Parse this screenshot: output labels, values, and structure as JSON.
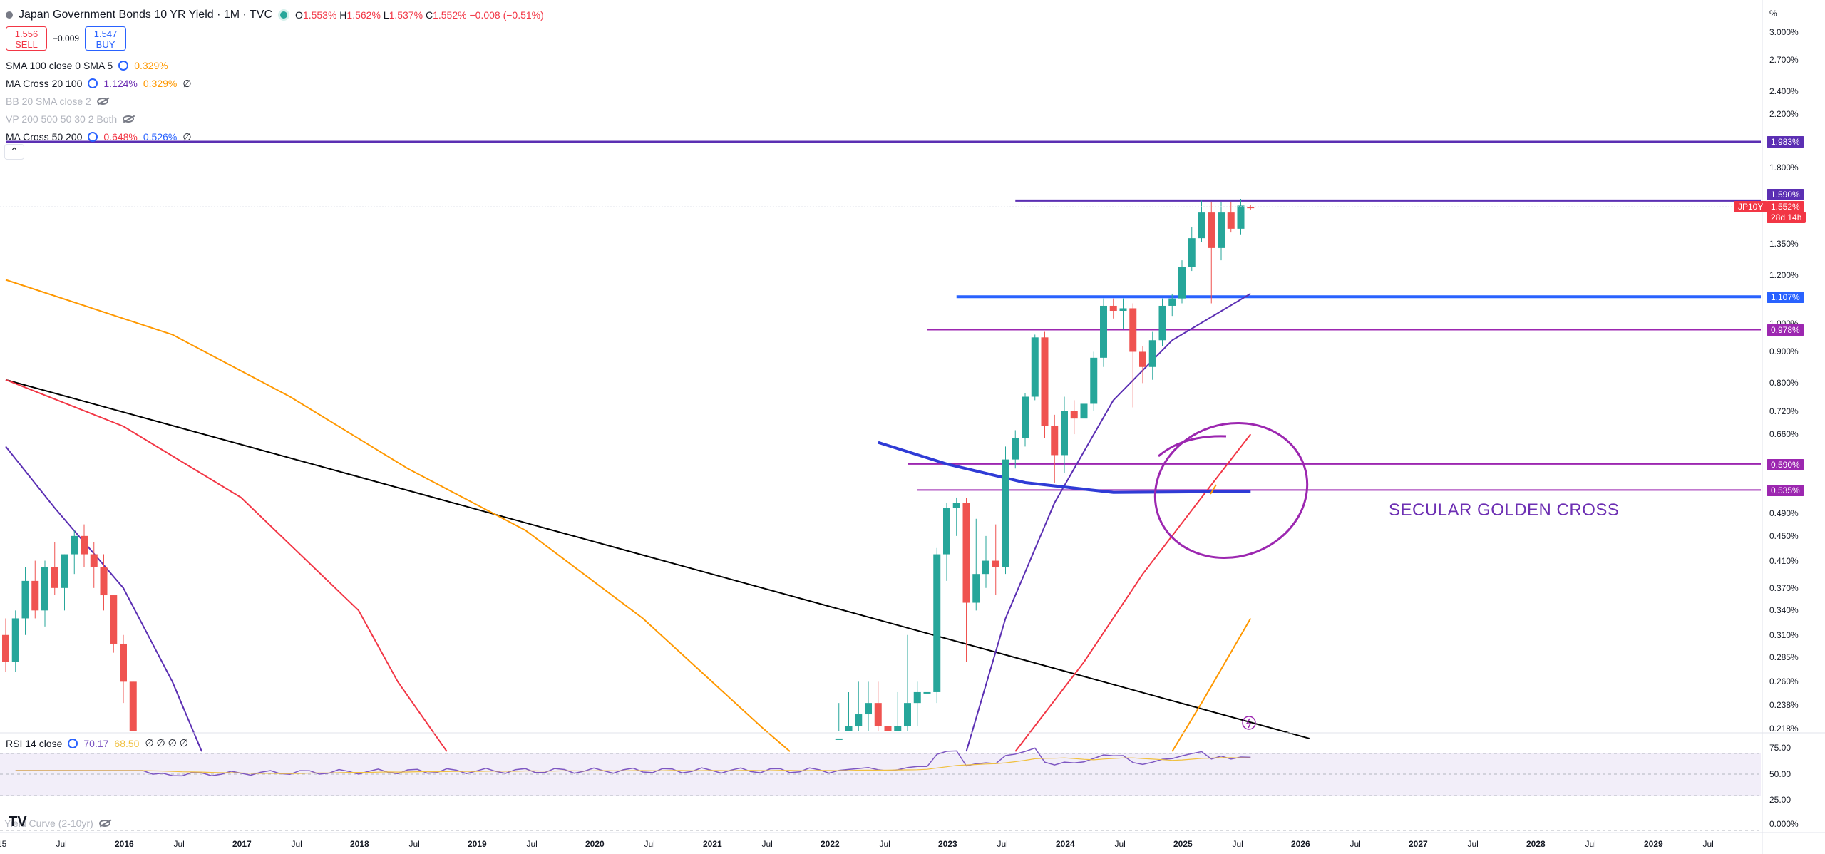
{
  "header": {
    "title": "Japan Government Bonds 10 YR Yield · 1M · TVC",
    "ohlc": [
      {
        "k": "O",
        "v": "1.553%"
      },
      {
        "k": "H",
        "v": "1.562%"
      },
      {
        "k": "L",
        "v": "1.537%"
      },
      {
        "k": "C",
        "v": "1.552%"
      },
      {
        "k": "",
        "v": "−0.008 (−0.51%)"
      }
    ],
    "sell_price": "1.556",
    "sell_label": "SELL",
    "spread": "−0.009",
    "buy_price": "1.547",
    "buy_label": "BUY"
  },
  "indicators": [
    {
      "name": "SMA 100 close 0 SMA 5",
      "values": [
        "0.329%"
      ],
      "value_colors": [
        "#ff9800"
      ],
      "hidden": false,
      "extra": ""
    },
    {
      "name": "MA Cross 20 100",
      "values": [
        "1.124%",
        "0.329%"
      ],
      "value_colors": [
        "#6d2fb3",
        "#ff9800"
      ],
      "hidden": false,
      "extra": "∅"
    },
    {
      "name": "BB 20 SMA close 2",
      "values": [],
      "value_colors": [],
      "hidden": true,
      "extra": ""
    },
    {
      "name": "VP 200 500 50 30 2 Both",
      "values": [],
      "value_colors": [],
      "hidden": true,
      "extra": ""
    },
    {
      "name": "MA Cross 50 200",
      "values": [
        "0.648%",
        "0.526%"
      ],
      "value_colors": [
        "#f23645",
        "#2962ff"
      ],
      "hidden": false,
      "extra": "∅"
    }
  ],
  "collapse_icon": "chevron-up",
  "price_axis": {
    "unit_label": "%",
    "ticks": [
      "3.000%",
      "2.700%",
      "2.400%",
      "2.200%",
      "1.800%",
      "1.350%",
      "1.200%",
      "1.000%",
      "0.900%",
      "0.800%",
      "0.720%",
      "0.660%",
      "0.490%",
      "0.450%",
      "0.410%",
      "0.370%",
      "0.340%",
      "0.310%",
      "0.285%",
      "0.260%",
      "0.238%",
      "0.218%"
    ]
  },
  "price_tags": [
    {
      "label": "1.983%",
      "color": "#5b2fb3"
    },
    {
      "label": "1.590%",
      "color": "#5b2fb3"
    },
    {
      "label": "1.552%",
      "color": "#f23645"
    },
    {
      "label": "28d 14h",
      "color": "#f23645"
    },
    {
      "label": "1.107%",
      "color": "#2962ff"
    },
    {
      "label": "0.978%",
      "color": "#9c27b0"
    },
    {
      "label": "0.590%",
      "color": "#9c27b0"
    },
    {
      "label": "0.535%",
      "color": "#9c27b0"
    }
  ],
  "symbol_tag": "JP10Y",
  "annotation": "SECULAR GOLDEN CROSS",
  "rsi": {
    "name": "RSI 14 close",
    "values": [
      "70.17",
      "68.50"
    ],
    "value_colors": [
      "#7e57c2",
      "#f0c040"
    ],
    "extra": "∅ ∅ ∅ ∅",
    "ticks": [
      "75.00",
      "50.00",
      "25.00"
    ]
  },
  "yield_curve": {
    "name": "Yield Curve (2-10yr)",
    "tick": "0.000%"
  },
  "time_axis": [
    "15",
    "Jul",
    "2016",
    "Jul",
    "2017",
    "Jul",
    "2018",
    "Jul",
    "2019",
    "Jul",
    "2020",
    "Jul",
    "2021",
    "Jul",
    "2022",
    "Jul",
    "2023",
    "Jul",
    "2024",
    "Jul",
    "2025",
    "Jul",
    "2026",
    "Jul",
    "2027",
    "Jul",
    "2028",
    "Jul",
    "2029",
    "Jul"
  ],
  "chart_data": {
    "type": "candlestick",
    "title": "Japan Government Bonds 10 YR Yield",
    "y_scale": "log",
    "y_range": [
      0.2,
      3.1
    ],
    "x_range": [
      "2015-01",
      "2029-12"
    ],
    "candles": [
      {
        "t": "2015-01",
        "o": 0.31,
        "h": 0.33,
        "l": 0.27,
        "c": 0.28
      },
      {
        "t": "2015-02",
        "o": 0.28,
        "h": 0.34,
        "l": 0.27,
        "c": 0.33
      },
      {
        "t": "2015-03",
        "o": 0.33,
        "h": 0.4,
        "l": 0.31,
        "c": 0.38
      },
      {
        "t": "2015-04",
        "o": 0.38,
        "h": 0.41,
        "l": 0.33,
        "c": 0.34
      },
      {
        "t": "2015-05",
        "o": 0.34,
        "h": 0.41,
        "l": 0.32,
        "c": 0.4
      },
      {
        "t": "2015-06",
        "o": 0.4,
        "h": 0.44,
        "l": 0.36,
        "c": 0.37
      },
      {
        "t": "2015-07",
        "o": 0.37,
        "h": 0.42,
        "l": 0.34,
        "c": 0.42
      },
      {
        "t": "2015-08",
        "o": 0.42,
        "h": 0.46,
        "l": 0.39,
        "c": 0.45
      },
      {
        "t": "2015-09",
        "o": 0.45,
        "h": 0.47,
        "l": 0.4,
        "c": 0.42
      },
      {
        "t": "2015-10",
        "o": 0.42,
        "h": 0.44,
        "l": 0.37,
        "c": 0.4
      },
      {
        "t": "2015-11",
        "o": 0.4,
        "h": 0.42,
        "l": 0.34,
        "c": 0.36
      },
      {
        "t": "2015-12",
        "o": 0.36,
        "h": 0.36,
        "l": 0.29,
        "c": 0.3
      },
      {
        "t": "2016-01",
        "o": 0.3,
        "h": 0.31,
        "l": 0.24,
        "c": 0.26
      },
      {
        "t": "2016-02",
        "o": 0.26,
        "h": 0.26,
        "l": 0.2,
        "c": 0.2
      },
      {
        "t": "2022-02",
        "o": 0.2,
        "h": 0.24,
        "l": 0.19,
        "c": 0.21
      },
      {
        "t": "2022-03",
        "o": 0.21,
        "h": 0.25,
        "l": 0.19,
        "c": 0.22
      },
      {
        "t": "2022-04",
        "o": 0.22,
        "h": 0.26,
        "l": 0.2,
        "c": 0.23
      },
      {
        "t": "2022-05",
        "o": 0.23,
        "h": 0.26,
        "l": 0.21,
        "c": 0.24
      },
      {
        "t": "2022-06",
        "o": 0.24,
        "h": 0.26,
        "l": 0.21,
        "c": 0.22
      },
      {
        "t": "2022-07",
        "o": 0.22,
        "h": 0.25,
        "l": 0.2,
        "c": 0.21
      },
      {
        "t": "2022-08",
        "o": 0.21,
        "h": 0.25,
        "l": 0.2,
        "c": 0.22
      },
      {
        "t": "2022-09",
        "o": 0.22,
        "h": 0.31,
        "l": 0.2,
        "c": 0.24
      },
      {
        "t": "2022-10",
        "o": 0.24,
        "h": 0.26,
        "l": 0.22,
        "c": 0.25
      },
      {
        "t": "2022-11",
        "o": 0.25,
        "h": 0.27,
        "l": 0.23,
        "c": 0.25
      },
      {
        "t": "2022-12",
        "o": 0.25,
        "h": 0.43,
        "l": 0.24,
        "c": 0.42
      },
      {
        "t": "2023-01",
        "o": 0.42,
        "h": 0.51,
        "l": 0.38,
        "c": 0.5
      },
      {
        "t": "2023-02",
        "o": 0.5,
        "h": 0.52,
        "l": 0.45,
        "c": 0.51
      },
      {
        "t": "2023-03",
        "o": 0.51,
        "h": 0.52,
        "l": 0.28,
        "c": 0.35
      },
      {
        "t": "2023-04",
        "o": 0.35,
        "h": 0.48,
        "l": 0.34,
        "c": 0.39
      },
      {
        "t": "2023-05",
        "o": 0.39,
        "h": 0.45,
        "l": 0.37,
        "c": 0.41
      },
      {
        "t": "2023-06",
        "o": 0.41,
        "h": 0.47,
        "l": 0.36,
        "c": 0.4
      },
      {
        "t": "2023-07",
        "o": 0.4,
        "h": 0.63,
        "l": 0.39,
        "c": 0.6
      },
      {
        "t": "2023-08",
        "o": 0.6,
        "h": 0.67,
        "l": 0.58,
        "c": 0.65
      },
      {
        "t": "2023-09",
        "o": 0.65,
        "h": 0.77,
        "l": 0.63,
        "c": 0.76
      },
      {
        "t": "2023-10",
        "o": 0.76,
        "h": 0.96,
        "l": 0.75,
        "c": 0.95
      },
      {
        "t": "2023-11",
        "o": 0.95,
        "h": 0.97,
        "l": 0.65,
        "c": 0.68
      },
      {
        "t": "2023-12",
        "o": 0.68,
        "h": 0.71,
        "l": 0.55,
        "c": 0.61
      },
      {
        "t": "2024-01",
        "o": 0.61,
        "h": 0.76,
        "l": 0.57,
        "c": 0.72
      },
      {
        "t": "2024-02",
        "o": 0.72,
        "h": 0.75,
        "l": 0.66,
        "c": 0.7
      },
      {
        "t": "2024-03",
        "o": 0.7,
        "h": 0.77,
        "l": 0.68,
        "c": 0.74
      },
      {
        "t": "2024-04",
        "o": 0.74,
        "h": 0.9,
        "l": 0.72,
        "c": 0.88
      },
      {
        "t": "2024-05",
        "o": 0.88,
        "h": 1.1,
        "l": 0.85,
        "c": 1.07
      },
      {
        "t": "2024-06",
        "o": 1.07,
        "h": 1.1,
        "l": 1.02,
        "c": 1.05
      },
      {
        "t": "2024-07",
        "o": 1.05,
        "h": 1.1,
        "l": 0.98,
        "c": 1.06
      },
      {
        "t": "2024-08",
        "o": 1.06,
        "h": 1.08,
        "l": 0.73,
        "c": 0.9
      },
      {
        "t": "2024-09",
        "o": 0.9,
        "h": 0.92,
        "l": 0.8,
        "c": 0.85
      },
      {
        "t": "2024-10",
        "o": 0.85,
        "h": 0.97,
        "l": 0.81,
        "c": 0.94
      },
      {
        "t": "2024-11",
        "o": 0.94,
        "h": 1.1,
        "l": 0.92,
        "c": 1.07
      },
      {
        "t": "2024-12",
        "o": 1.07,
        "h": 1.12,
        "l": 1.03,
        "c": 1.1
      },
      {
        "t": "2025-01",
        "o": 1.1,
        "h": 1.27,
        "l": 1.08,
        "c": 1.24
      },
      {
        "t": "2025-02",
        "o": 1.24,
        "h": 1.44,
        "l": 1.22,
        "c": 1.38
      },
      {
        "t": "2025-03",
        "o": 1.38,
        "h": 1.59,
        "l": 1.36,
        "c": 1.52
      },
      {
        "t": "2025-04",
        "o": 1.52,
        "h": 1.58,
        "l": 1.08,
        "c": 1.33
      },
      {
        "t": "2025-05",
        "o": 1.33,
        "h": 1.58,
        "l": 1.27,
        "c": 1.52
      },
      {
        "t": "2025-06",
        "o": 1.52,
        "h": 1.58,
        "l": 1.41,
        "c": 1.43
      },
      {
        "t": "2025-07",
        "o": 1.43,
        "h": 1.6,
        "l": 1.4,
        "c": 1.56
      },
      {
        "t": "2025-08",
        "o": 1.553,
        "h": 1.562,
        "l": 1.537,
        "c": 1.552
      }
    ],
    "horizontal_levels": [
      {
        "value": 1.983,
        "color": "#5b2fb3",
        "from": "2015-01"
      },
      {
        "value": 1.59,
        "color": "#5b2fb3",
        "from": "2023-08"
      },
      {
        "value": 1.107,
        "color": "#2962ff",
        "from": "2023-02"
      },
      {
        "value": 0.978,
        "color": "#9c27b0",
        "from": "2022-11"
      },
      {
        "value": 0.59,
        "color": "#9c27b0",
        "from": "2022-09"
      },
      {
        "value": 0.535,
        "color": "#9c27b0",
        "from": "2022-10"
      }
    ],
    "trendline": {
      "color": "#000000",
      "points": [
        [
          "2015-01",
          0.81
        ],
        [
          "2026-02",
          0.21
        ]
      ]
    },
    "ma_lines": [
      {
        "color": "#ff9800",
        "points": [
          [
            "2015-01",
            1.18
          ],
          [
            "2016-06",
            0.96
          ],
          [
            "2017-06",
            0.76
          ],
          [
            "2018-06",
            0.58
          ],
          [
            "2019-06",
            0.46
          ],
          [
            "2020-06",
            0.33
          ],
          [
            "2021-06",
            0.22
          ],
          [
            "2021-09",
            0.2
          ]
        ]
      },
      {
        "color": "#ff9800",
        "points": [
          [
            "2024-12",
            0.2
          ],
          [
            "2025-03",
            0.24
          ],
          [
            "2025-08",
            0.33
          ]
        ]
      },
      {
        "color": "#f23645",
        "points": [
          [
            "2015-01",
            0.81
          ],
          [
            "2016-01",
            0.68
          ],
          [
            "2017-01",
            0.52
          ],
          [
            "2018-01",
            0.34
          ],
          [
            "2018-05",
            0.26
          ],
          [
            "2018-10",
            0.2
          ]
        ]
      },
      {
        "color": "#f23645",
        "points": [
          [
            "2023-08",
            0.2
          ],
          [
            "2024-03",
            0.28
          ],
          [
            "2024-09",
            0.39
          ],
          [
            "2025-03",
            0.52
          ],
          [
            "2025-08",
            0.66
          ]
        ]
      },
      {
        "color": "#5b2fb3",
        "points": [
          [
            "2015-01",
            0.63
          ],
          [
            "2015-06",
            0.5
          ],
          [
            "2016-01",
            0.37
          ],
          [
            "2016-06",
            0.26
          ],
          [
            "2016-09",
            0.2
          ]
        ]
      },
      {
        "color": "#5b2fb3",
        "points": [
          [
            "2023-03",
            0.2
          ],
          [
            "2023-07",
            0.33
          ],
          [
            "2023-12",
            0.51
          ],
          [
            "2024-06",
            0.75
          ],
          [
            "2024-12",
            0.94
          ],
          [
            "2025-08",
            1.12
          ]
        ]
      },
      {
        "color": "#2f3bd6",
        "width": 4,
        "points": [
          [
            "2022-06",
            0.64
          ],
          [
            "2023-01",
            0.59
          ],
          [
            "2023-09",
            0.55
          ],
          [
            "2024-06",
            0.53
          ],
          [
            "2025-08",
            0.532
          ]
        ]
      }
    ],
    "rsi_series": {
      "min": 0,
      "max": 100,
      "band": [
        30,
        70
      ],
      "guide": 50
    },
    "annotation_text": "SECULAR GOLDEN CROSS"
  }
}
